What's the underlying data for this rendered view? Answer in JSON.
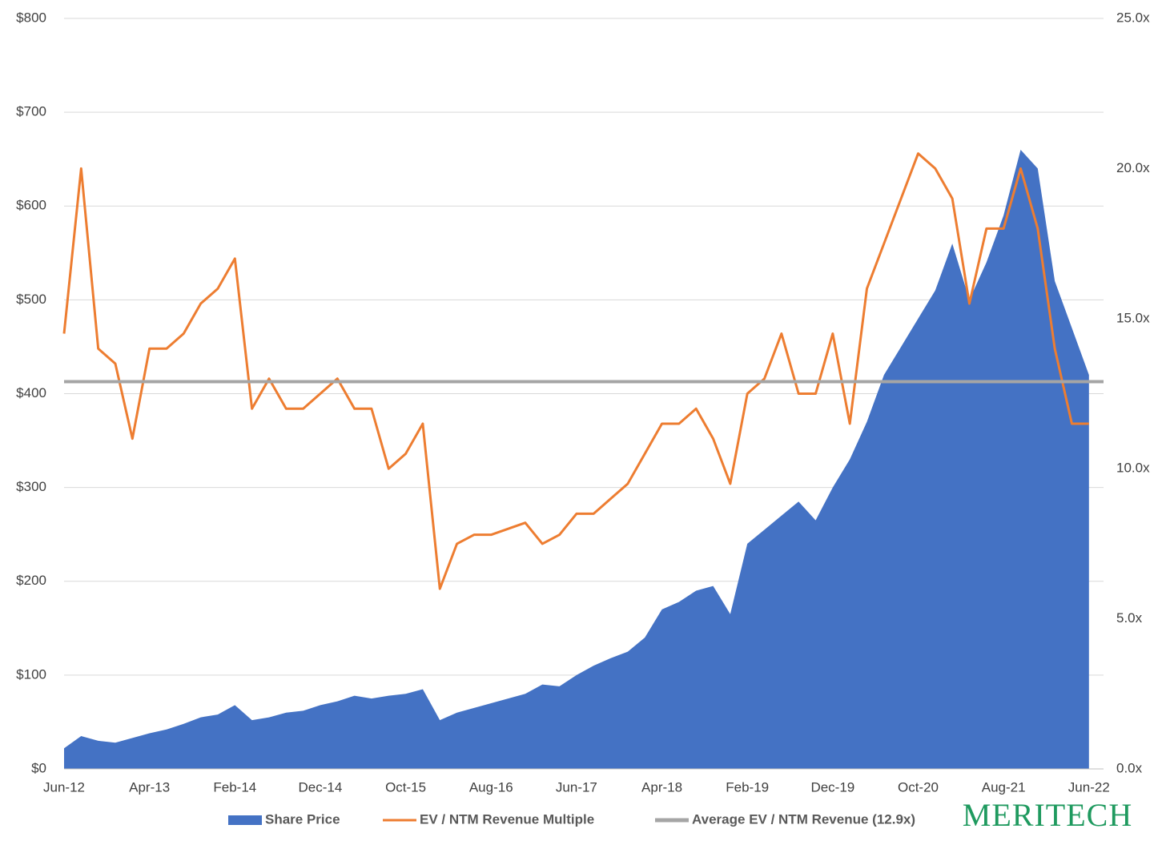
{
  "chart_data": {
    "type": "area-line",
    "x": [
      "Jun-12",
      null,
      null,
      null,
      null,
      "Apr-13",
      null,
      null,
      null,
      null,
      "Feb-14",
      null,
      null,
      null,
      null,
      "Dec-14",
      null,
      null,
      null,
      null,
      "Oct-15",
      null,
      null,
      null,
      null,
      "Aug-16",
      null,
      null,
      null,
      null,
      "Jun-17",
      null,
      null,
      null,
      null,
      "Apr-18",
      null,
      null,
      null,
      null,
      "Feb-19",
      null,
      null,
      null,
      null,
      "Dec-19",
      null,
      null,
      null,
      null,
      "Oct-20",
      null,
      null,
      null,
      null,
      "Aug-21",
      null,
      null,
      null,
      null,
      "Jun-22"
    ],
    "series": [
      {
        "name": "Share Price",
        "color": "#4472c4",
        "kind": "area",
        "values": [
          22,
          35,
          30,
          28,
          33,
          38,
          42,
          48,
          55,
          58,
          68,
          52,
          55,
          60,
          62,
          68,
          72,
          78,
          75,
          78,
          80,
          85,
          52,
          60,
          65,
          70,
          75,
          80,
          90,
          88,
          100,
          110,
          118,
          125,
          140,
          170,
          178,
          190,
          195,
          165,
          240,
          255,
          270,
          285,
          265,
          300,
          330,
          370,
          420,
          450,
          480,
          510,
          560,
          500,
          540,
          590,
          660,
          640,
          520,
          470,
          420
        ]
      },
      {
        "name": "EV / NTM Revenue Multiple",
        "color": "#ed7d31",
        "kind": "line",
        "axis": "y2",
        "values": [
          14.5,
          20,
          14,
          13.5,
          11,
          14,
          14,
          14.5,
          15.5,
          16,
          17,
          12,
          13,
          12,
          12,
          12.5,
          13,
          12,
          12,
          10,
          10.5,
          11.5,
          6,
          7.5,
          7.8,
          7.8,
          8,
          8.2,
          7.5,
          7.8,
          8.5,
          8.5,
          9,
          9.5,
          10.5,
          11.5,
          11.5,
          12,
          11,
          9.5,
          12.5,
          13,
          14.5,
          12.5,
          12.5,
          14.5,
          11.5,
          16,
          17.5,
          19,
          20.5,
          20,
          19,
          15.5,
          18,
          18,
          20,
          18,
          14,
          11.5,
          11.5
        ]
      },
      {
        "name": "Average EV / NTM Revenue (12.9x)",
        "color": "#a5a5a5",
        "kind": "hline",
        "axis": "y2",
        "value": 12.9
      }
    ],
    "ylim": [
      0,
      800
    ],
    "yticks": [
      {
        "value": 0,
        "label": "$0"
      },
      {
        "value": 100,
        "label": "$100"
      },
      {
        "value": 200,
        "label": "$200"
      },
      {
        "value": 300,
        "label": "$300"
      },
      {
        "value": 400,
        "label": "$400"
      },
      {
        "value": 500,
        "label": "$500"
      },
      {
        "value": 600,
        "label": "$600"
      },
      {
        "value": 700,
        "label": "$700"
      },
      {
        "value": 800,
        "label": "$800"
      }
    ],
    "y2lim": [
      0,
      25
    ],
    "y2ticks": [
      {
        "value": 0,
        "label": "0.0x"
      },
      {
        "value": 5,
        "label": "5.0x"
      },
      {
        "value": 10,
        "label": "10.0x"
      },
      {
        "value": 15,
        "label": "15.0x"
      },
      {
        "value": 20,
        "label": "20.0x"
      },
      {
        "value": 25,
        "label": "25.0x"
      }
    ],
    "grid": true,
    "legend": "bottom",
    "logo": "MERITECH"
  }
}
